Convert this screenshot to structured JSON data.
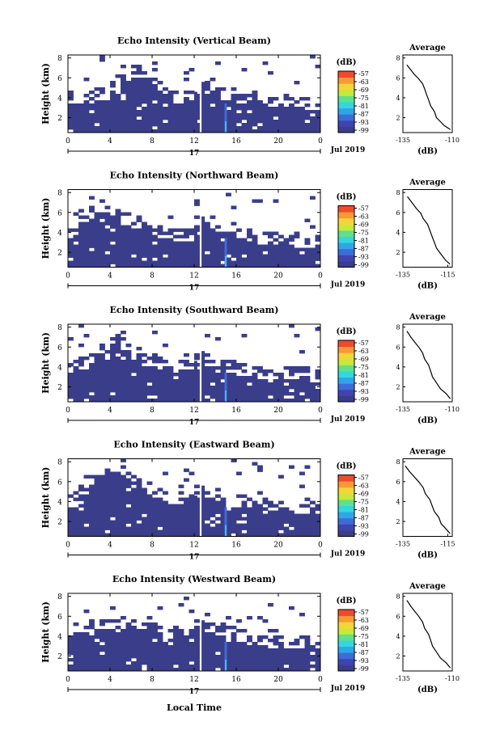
{
  "figure": {
    "xlabel": "Local Time",
    "colorbar_unit": "(dB)",
    "colorbar_ticks": [
      "-57",
      "-63",
      "-69",
      "-75",
      "-81",
      "-87",
      "-93",
      "-99"
    ],
    "colormap": [
      "#3a3d8a",
      "#3f44b0",
      "#3d6cd8",
      "#2fa6e8",
      "#35d6e0",
      "#5fe08a",
      "#c8e83a",
      "#f5d43a",
      "#f79a36",
      "#ef4a2e"
    ],
    "background_color": "#3a3d8a"
  },
  "chart_data": [
    {
      "type": "heatmap",
      "title": "Echo Intensity (Vertical Beam)",
      "ylabel": "Height (km)",
      "x_ticks": [
        "0",
        "4",
        "8",
        "12",
        "16",
        "20",
        "0"
      ],
      "date_label": "17",
      "month_label": "Jul 2019",
      "y_ticks": [
        "2",
        "4",
        "6",
        "8"
      ],
      "xlim": [
        0,
        24
      ],
      "ylim": [
        0.5,
        8.3
      ],
      "heights": [
        0.9,
        1.5,
        2.1,
        2.7,
        3.3,
        3.9,
        4.5,
        5.1,
        5.7,
        6.3,
        6.9,
        7.5,
        8.1
      ],
      "data_gap_hours": [
        12.3,
        12.7
      ],
      "echo_top_km": [
        3.8,
        3.8,
        4.0,
        4.2,
        4.6,
        5.6,
        6.4,
        5.8,
        5.0,
        4.2,
        3.9,
        3.9,
        4.4,
        4.6,
        4.2,
        4.0,
        3.8,
        3.6,
        3.6,
        3.4,
        3.3,
        3.2,
        3.0,
        3.0
      ],
      "average_profile": {
        "title": "Average",
        "xlabel": "(dB)",
        "x_ticks": [
          "-135",
          "-110"
        ],
        "y_ticks": [
          "2",
          "4",
          "6",
          "8"
        ],
        "xlim": [
          -135,
          -110
        ],
        "ylim": [
          0.5,
          8.3
        ],
        "x": [
          -111,
          -114,
          -116,
          -118,
          -119,
          -121,
          -122,
          -123,
          -124,
          -125,
          -127,
          -129,
          -131,
          -133
        ],
        "y": [
          0.8,
          1.2,
          1.6,
          2.0,
          2.6,
          3.2,
          3.8,
          4.3,
          4.9,
          5.4,
          5.9,
          6.3,
          6.8,
          7.3
        ]
      }
    },
    {
      "type": "heatmap",
      "title": "Echo Intensity (Northward Beam)",
      "ylabel": "Height (km)",
      "x_ticks": [
        "0",
        "4",
        "8",
        "12",
        "16",
        "20",
        "0"
      ],
      "date_label": "17",
      "month_label": "Jul 2019",
      "y_ticks": [
        "2",
        "4",
        "6",
        "8"
      ],
      "xlim": [
        0,
        24
      ],
      "ylim": [
        0.5,
        8.3
      ],
      "heights": [
        0.9,
        1.5,
        2.1,
        2.7,
        3.3,
        3.9,
        4.5,
        5.1,
        5.7,
        6.3,
        6.9,
        7.5,
        8.1
      ],
      "data_gap_hours": [
        12.3,
        12.7
      ],
      "echo_top_km": [
        3.8,
        4.6,
        5.6,
        6.2,
        5.8,
        5.2,
        4.6,
        4.2,
        3.8,
        3.6,
        3.5,
        3.5,
        5.2,
        4.8,
        4.4,
        4.0,
        3.6,
        3.4,
        3.2,
        3.0,
        2.9,
        2.8,
        2.8,
        2.7
      ],
      "average_profile": {
        "title": "Average",
        "xlabel": "(dB)",
        "x_ticks": [
          "-135",
          "-115"
        ],
        "y_ticks": [
          "2",
          "4",
          "6",
          "8"
        ],
        "xlim": [
          -135,
          -113
        ],
        "ylim": [
          0.5,
          8.3
        ],
        "x": [
          -114,
          -116,
          -118,
          -120,
          -121,
          -122,
          -123,
          -124,
          -126,
          -127,
          -129,
          -131,
          -133
        ],
        "y": [
          0.8,
          1.2,
          1.8,
          2.4,
          3.0,
          3.6,
          4.2,
          4.8,
          5.4,
          5.9,
          6.4,
          7.0,
          7.6
        ]
      }
    },
    {
      "type": "heatmap",
      "title": "Echo Intensity (Southward Beam)",
      "ylabel": "Height (km)",
      "x_ticks": [
        "0",
        "4",
        "8",
        "12",
        "16",
        "20",
        "0"
      ],
      "date_label": "17",
      "month_label": "Jul 2019",
      "y_ticks": [
        "2",
        "4",
        "6",
        "8"
      ],
      "xlim": [
        0,
        24
      ],
      "ylim": [
        0.5,
        8.3
      ],
      "heights": [
        0.9,
        1.5,
        2.1,
        2.7,
        3.3,
        3.9,
        4.5,
        5.1,
        5.7,
        6.3,
        6.9,
        7.5,
        8.1
      ],
      "data_gap_hours": [
        12.3,
        12.7
      ],
      "echo_top_km": [
        3.6,
        4.0,
        4.4,
        5.4,
        6.6,
        6.0,
        5.0,
        4.4,
        4.2,
        4.0,
        3.8,
        3.6,
        4.6,
        4.4,
        4.2,
        3.8,
        3.5,
        3.3,
        3.2,
        3.1,
        3.0,
        3.0,
        3.0,
        2.9
      ],
      "average_profile": {
        "title": "Average",
        "xlabel": "(dB)",
        "x_ticks": [
          "-135",
          "-110"
        ],
        "y_ticks": [
          "2",
          "4",
          "6",
          "8"
        ],
        "xlim": [
          -135,
          -110
        ],
        "ylim": [
          0.5,
          8.3
        ],
        "x": [
          -111,
          -113,
          -116,
          -118,
          -120,
          -121,
          -122,
          -124,
          -125,
          -127,
          -129,
          -131,
          -133
        ],
        "y": [
          0.8,
          1.3,
          1.8,
          2.4,
          3.0,
          3.6,
          4.2,
          4.8,
          5.4,
          6.0,
          6.5,
          7.0,
          7.6
        ]
      }
    },
    {
      "type": "heatmap",
      "title": "Echo Intensity (Eastward Beam)",
      "ylabel": "Height (km)",
      "x_ticks": [
        "0",
        "4",
        "8",
        "12",
        "16",
        "20",
        "0"
      ],
      "date_label": "17",
      "month_label": "Jul 2019",
      "y_ticks": [
        "2",
        "4",
        "6",
        "8"
      ],
      "xlim": [
        0,
        24
      ],
      "ylim": [
        0.5,
        8.3
      ],
      "heights": [
        0.9,
        1.5,
        2.1,
        2.7,
        3.3,
        3.9,
        4.5,
        5.1,
        5.7,
        6.3,
        6.9,
        7.5,
        8.1
      ],
      "data_gap_hours": [
        12.3,
        12.7
      ],
      "echo_top_km": [
        3.8,
        4.6,
        5.6,
        6.6,
        7.4,
        6.8,
        5.8,
        5.0,
        4.6,
        4.2,
        4.0,
        3.8,
        4.6,
        4.4,
        4.2,
        3.8,
        3.6,
        3.4,
        3.4,
        3.2,
        3.1,
        3.0,
        3.0,
        3.0
      ],
      "average_profile": {
        "title": "Average",
        "xlabel": "(dB)",
        "x_ticks": [
          "-135",
          "-115"
        ],
        "y_ticks": [
          "2",
          "4",
          "6",
          "8"
        ],
        "xlim": [
          -135,
          -113
        ],
        "ylim": [
          0.5,
          8.3
        ],
        "x": [
          -114,
          -116,
          -118,
          -119,
          -121,
          -122,
          -123,
          -125,
          -126,
          -128,
          -130,
          -132,
          -134
        ],
        "y": [
          0.8,
          1.3,
          1.8,
          2.4,
          3.0,
          3.6,
          4.2,
          4.8,
          5.4,
          6.0,
          6.5,
          7.0,
          7.6
        ]
      }
    },
    {
      "type": "heatmap",
      "title": "Echo Intensity (Westward Beam)",
      "ylabel": "Height (km)",
      "x_ticks": [
        "0",
        "4",
        "8",
        "12",
        "16",
        "20",
        "0"
      ],
      "date_label": "17",
      "month_label": "Jul 2019",
      "y_ticks": [
        "2",
        "4",
        "6",
        "8"
      ],
      "xlim": [
        0,
        24
      ],
      "ylim": [
        0.5,
        8.3
      ],
      "heights": [
        0.9,
        1.5,
        2.1,
        2.7,
        3.3,
        3.9,
        4.5,
        5.1,
        5.7,
        6.3,
        6.9,
        7.5,
        8.1
      ],
      "data_gap_hours": [
        12.3,
        12.7
      ],
      "echo_top_km": [
        4.0,
        4.4,
        4.6,
        4.6,
        4.6,
        5.0,
        5.2,
        5.0,
        4.6,
        4.2,
        4.0,
        3.8,
        5.0,
        4.6,
        4.4,
        4.0,
        3.6,
        3.4,
        3.2,
        3.1,
        3.0,
        3.0,
        3.0,
        3.0
      ],
      "average_profile": {
        "title": "Average",
        "xlabel": "(dB)",
        "x_ticks": [
          "-135",
          "-110"
        ],
        "y_ticks": [
          "2",
          "4",
          "6",
          "8"
        ],
        "xlim": [
          -135,
          -110
        ],
        "ylim": [
          0.5,
          8.3
        ],
        "x": [
          -111,
          -113,
          -116,
          -118,
          -120,
          -121,
          -122,
          -124,
          -125,
          -127,
          -129,
          -131,
          -133
        ],
        "y": [
          0.8,
          1.3,
          1.8,
          2.4,
          3.0,
          3.6,
          4.2,
          4.8,
          5.4,
          6.0,
          6.5,
          7.0,
          7.6
        ]
      }
    }
  ]
}
